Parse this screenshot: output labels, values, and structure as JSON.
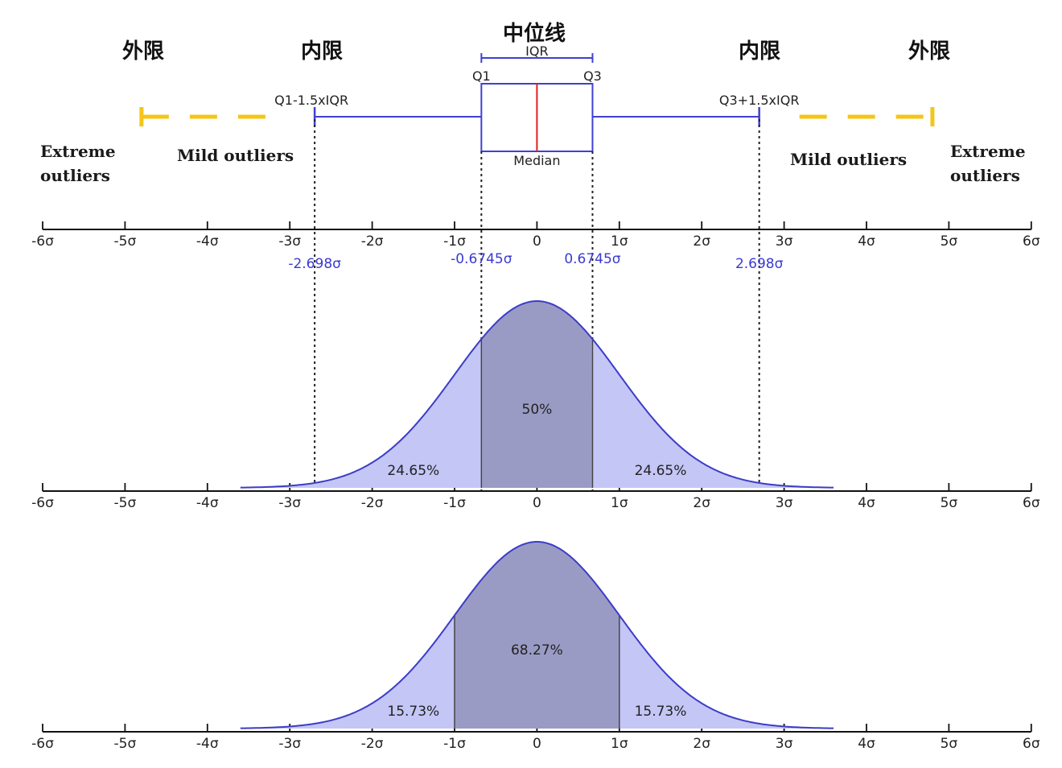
{
  "header_labels": {
    "outer_fence_left": "外限",
    "inner_fence_left": "内限",
    "median_line": "中位线",
    "inner_fence_right": "内限",
    "outer_fence_right": "外限"
  },
  "boxplot": {
    "iqr_label": "IQR",
    "q1_label": "Q1",
    "q3_label": "Q3",
    "median_label": "Median",
    "lower_fence_label": "Q1-1.5xIQR",
    "upper_fence_label": "Q3+1.5xIQR",
    "q1": -0.6745,
    "median": 0,
    "q3": 0.6745,
    "lower_fence": -2.698,
    "upper_fence": 2.698,
    "outer_fence_range": [
      -4.8,
      4.8
    ],
    "colors": {
      "box": "#4040d0",
      "median": "#e02020",
      "outer": "#f5c518"
    }
  },
  "outlier_labels": {
    "extreme_left": [
      "Extreme",
      "outliers"
    ],
    "mild_left": "Mild outliers",
    "mild_right": "Mild outliers",
    "extreme_right": [
      "Extreme",
      "outliers"
    ]
  },
  "axis": {
    "ticks": [
      -6,
      -5,
      -4,
      -3,
      -2,
      -1,
      0,
      1,
      2,
      3,
      4,
      5,
      6
    ],
    "tick_labels": [
      "-6σ",
      "-5σ",
      "-4σ",
      "-3σ",
      "-2σ",
      "-1σ",
      "0",
      "1σ",
      "2σ",
      "3σ",
      "4σ",
      "5σ",
      "6σ"
    ]
  },
  "sigma_marks": [
    {
      "value": -2.698,
      "label": "-2.698σ"
    },
    {
      "value": -0.6745,
      "label": "-0.6745σ"
    },
    {
      "value": 0.6745,
      "label": "0.6745σ"
    },
    {
      "value": 2.698,
      "label": "2.698σ"
    }
  ],
  "chart_data": [
    {
      "type": "area",
      "title": "",
      "x_range": [
        -6,
        6
      ],
      "curve": "standard normal density",
      "regions": [
        {
          "from": -2.698,
          "to": -0.6745,
          "label": "24.65%",
          "value": 24.65
        },
        {
          "from": -0.6745,
          "to": 0.6745,
          "label": "50%",
          "value": 50
        },
        {
          "from": 0.6745,
          "to": 2.698,
          "label": "24.65%",
          "value": 24.65
        }
      ],
      "colors": {
        "fill": "#c4c6f6",
        "center": "#9a9bc4",
        "line": "#3c3cc8"
      }
    },
    {
      "type": "area",
      "title": "",
      "x_range": [
        -6,
        6
      ],
      "curve": "standard normal density",
      "regions": [
        {
          "from": -2,
          "to": -1,
          "label": "15.73%",
          "value": 15.73
        },
        {
          "from": -1,
          "to": 1,
          "label": "68.27%",
          "value": 68.27
        },
        {
          "from": 1,
          "to": 2,
          "label": "15.73%",
          "value": 15.73
        }
      ],
      "colors": {
        "fill": "#c4c6f6",
        "center": "#9a9bc4",
        "line": "#3c3cc8"
      }
    }
  ]
}
